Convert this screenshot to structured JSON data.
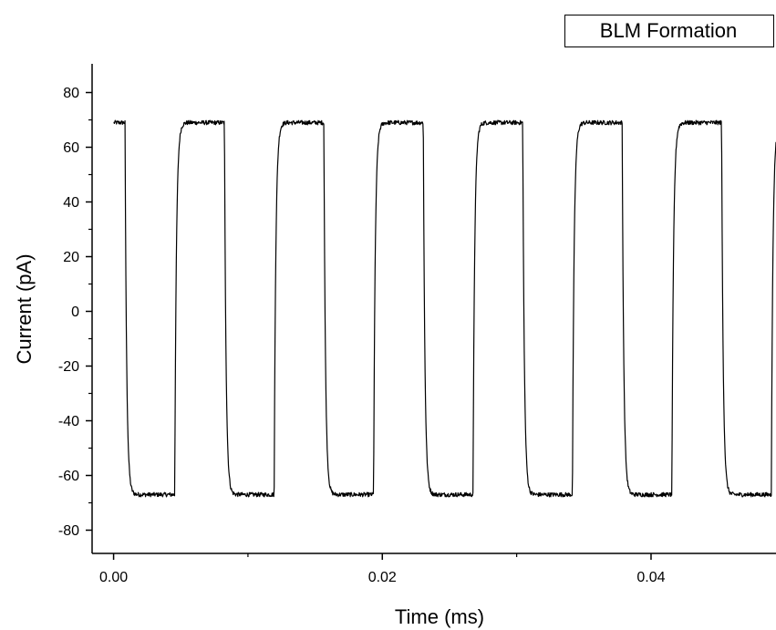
{
  "chart_data": {
    "type": "line",
    "xlabel": "Time (ms)",
    "ylabel": "Current (pA)",
    "xlim": [
      -0.0016,
      0.0493
    ],
    "ylim": [
      -88.5,
      90.5
    ],
    "x_ticks": [
      0.0,
      0.02,
      0.04
    ],
    "x_tick_labels": [
      "0.00",
      "0.02",
      "0.04"
    ],
    "x_minor_ticks": [
      0.01,
      0.03
    ],
    "y_ticks": [
      -80,
      -60,
      -40,
      -20,
      0,
      20,
      40,
      60,
      80
    ],
    "y_tick_labels": [
      "-80",
      "-60",
      "-40",
      "-20",
      "0",
      "20",
      "40",
      "60",
      "80"
    ],
    "grid": false,
    "legend_position": "top-right",
    "series": [
      {
        "name": "BLM Formation",
        "color": "#000000",
        "period_ms": 0.0074,
        "high_pA": 69,
        "low_pA": -67,
        "transitions_ms": {
          "falls": [
            0.00085,
            0.00825,
            0.01565,
            0.02305,
            0.03045,
            0.03785,
            0.04525
          ],
          "rises": [
            0.00455,
            0.01195,
            0.01935,
            0.02675,
            0.03415,
            0.04155,
            0.04895
          ]
        },
        "x": [
          0.0,
          0.0008,
          0.001,
          0.0014,
          0.0025,
          0.0044,
          0.0048,
          0.0054,
          0.0066,
          0.0081,
          0.0085,
          0.0089,
          0.0099,
          0.0118,
          0.0122,
          0.0128,
          0.014,
          0.0155,
          0.0159,
          0.0163,
          0.0175,
          0.0192,
          0.0196,
          0.0202,
          0.0214,
          0.0229,
          0.0233,
          0.0237,
          0.0249,
          0.0266,
          0.027,
          0.0276,
          0.0288,
          0.0303,
          0.0307,
          0.0311,
          0.0323,
          0.034,
          0.0344,
          0.035,
          0.0362,
          0.0377,
          0.0381,
          0.0385,
          0.0397,
          0.0414,
          0.0418,
          0.0424,
          0.0436,
          0.0451,
          0.0455,
          0.0459,
          0.0471,
          0.0488,
          0.0492
        ],
        "y": [
          69,
          69.5,
          40,
          -65,
          -67,
          -67.5,
          -20,
          68,
          69,
          69.5,
          30,
          -66,
          -67,
          -67.5,
          -15,
          69,
          70,
          69,
          25,
          -66,
          -67,
          -67.5,
          -10,
          68,
          69.5,
          69,
          20,
          -66,
          -67.5,
          -67.5,
          -5,
          69,
          69.5,
          69,
          20,
          -66,
          -67,
          -67.5,
          -10,
          68,
          69,
          69,
          25,
          -66,
          -67,
          -68,
          -15,
          68,
          69,
          69.5,
          30,
          -66,
          -67.5,
          -68,
          67
        ]
      }
    ]
  }
}
